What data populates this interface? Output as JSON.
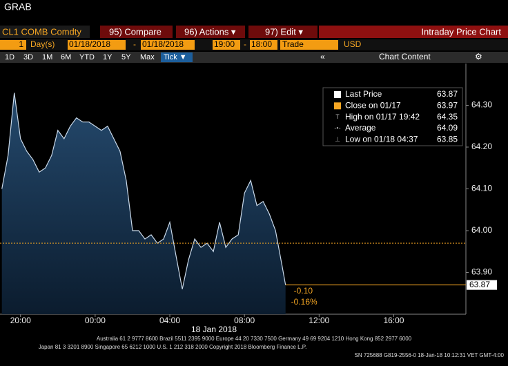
{
  "window_title": "GRAB",
  "toolbar": {
    "security": "CL1 COMB Comdty",
    "buttons": [
      "95) Compare",
      "96) Actions ▾",
      "97) Edit ▾"
    ],
    "title": "Intraday Price Chart"
  },
  "controls": {
    "period": "1",
    "period_unit": "Day(s)",
    "start_date": "01/18/2018",
    "date_sep": "-",
    "end_date": "01/18/2018",
    "start_time": "19:00",
    "time_sep": "-",
    "end_time": "18:00",
    "event": "Trade",
    "currency": "USD"
  },
  "ranges": [
    "1D",
    "3D",
    "1M",
    "6M",
    "YTD",
    "1Y",
    "5Y",
    "Max",
    "Tick ▼"
  ],
  "collapse": "«",
  "chart_content": "Chart Content",
  "chart_data": {
    "type": "area",
    "x": [
      "19:00",
      "19:20",
      "19:40",
      "20:00",
      "20:20",
      "20:40",
      "21:00",
      "21:20",
      "21:40",
      "22:00",
      "22:20",
      "22:40",
      "23:00",
      "23:20",
      "23:40",
      "00:00",
      "00:20",
      "00:40",
      "01:00",
      "01:20",
      "01:40",
      "02:00",
      "02:20",
      "02:40",
      "03:00",
      "03:20",
      "03:40",
      "04:00",
      "04:20",
      "04:40",
      "05:00",
      "05:20",
      "05:40",
      "06:00",
      "06:20",
      "06:40",
      "07:00",
      "07:20",
      "07:40",
      "08:00",
      "08:20",
      "08:40",
      "09:00",
      "09:20",
      "09:40",
      "10:00",
      "10:12"
    ],
    "series": [
      {
        "color": "#c9d9ea",
        "values": [
          64.1,
          64.18,
          64.33,
          64.22,
          64.19,
          64.17,
          64.14,
          64.15,
          64.18,
          64.24,
          64.22,
          64.25,
          64.27,
          64.26,
          64.26,
          64.25,
          64.24,
          64.25,
          64.22,
          64.19,
          64.12,
          64.0,
          64.0,
          63.98,
          63.99,
          63.97,
          63.98,
          64.02,
          63.94,
          63.86,
          63.93,
          63.98,
          63.96,
          63.97,
          63.95,
          64.02,
          63.96,
          63.98,
          63.99,
          64.09,
          64.12,
          64.06,
          64.07,
          64.04,
          64.0,
          63.92,
          63.87
        ]
      }
    ],
    "xlim": [
      "18:54",
      "19:52"
    ],
    "xticks": [
      "20:00",
      "00:00",
      "04:00",
      "08:00",
      "12:00",
      "16:00"
    ],
    "date_label": "18 Jan 2018",
    "ylim": [
      63.8,
      64.4
    ],
    "yticks": [
      {
        "value": 63.9,
        "label": "63.90"
      },
      {
        "value": 64,
        "label": "64.00"
      },
      {
        "value": 64.1,
        "label": "64.10"
      },
      {
        "value": 64.2,
        "label": "64.20"
      },
      {
        "value": 64.3,
        "label": "64.30"
      }
    ],
    "legend": [
      {
        "label": "Last Price",
        "value": 63.87
      },
      {
        "label": "Close on 01/17",
        "value": 63.97
      },
      {
        "label": "High on 01/17 19:42",
        "value": 64.35
      },
      {
        "label": "Average",
        "value": 64.09
      },
      {
        "label": "Low on 01/18 04:37",
        "value": 63.85
      }
    ],
    "marker_color": "#f5a623",
    "change": "-0.10",
    "change_pct": "-0.16%"
  },
  "footer": [
    "Australia 61 2 9777 8600 Brazil 5511 2395 9000 Europe 44 20 7330 7500 Germany 49 69 9204 1210 Hong Kong 852 2977 6000",
    "Japan 81 3 3201 8900     Singapore 65 6212 1000     U.S. 1 212 318 2000     Copyright 2018 Bloomberg Finance L.P.",
    "SN 725688 G819-2556-0 18-Jan-18 10:12:31 VET  GMT-4:00"
  ]
}
